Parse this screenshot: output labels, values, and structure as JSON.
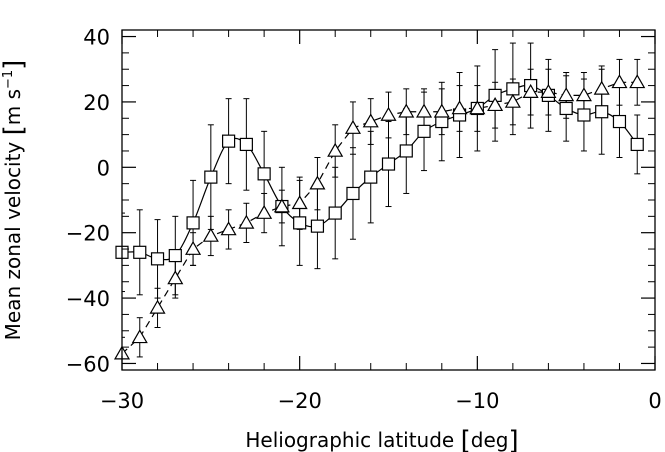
{
  "chart_data": {
    "type": "scatter",
    "title": "",
    "xlabel_parts": {
      "main": "Heliographic latitude",
      "unit": "deg"
    },
    "ylabel_parts": {
      "main": "Mean zonal velocity",
      "unit_base": "m s",
      "unit_exp": "−1"
    },
    "xlim": [
      -30,
      0
    ],
    "ylim": [
      -62,
      42
    ],
    "x_ticks": [
      -30,
      -20,
      -10,
      0
    ],
    "x_tick_labels": [
      "−30",
      "−20",
      "−10",
      "0"
    ],
    "y_ticks": [
      -60,
      -40,
      -20,
      0,
      20,
      40
    ],
    "y_tick_labels": [
      "−60",
      "−40",
      "−20",
      "0",
      "20",
      "40"
    ],
    "grid": false,
    "series": [
      {
        "marker": "square",
        "line": "solid",
        "color": "#000000",
        "x": [
          -30,
          -29,
          -28,
          -27,
          -26,
          -25,
          -24,
          -23,
          -22,
          -21,
          -20,
          -19,
          -18,
          -17,
          -16,
          -15,
          -14,
          -13,
          -12,
          -11,
          -10,
          -9,
          -8,
          -7,
          -6,
          -5,
          -4,
          -3,
          -2,
          -1
        ],
        "y": [
          -26,
          -26,
          -28,
          -27,
          -17,
          -3,
          8,
          7,
          -2,
          -12,
          -17,
          -18,
          -14,
          -8,
          -3,
          1,
          5,
          11,
          14,
          16,
          18,
          22,
          24,
          25,
          22,
          18,
          16,
          17,
          14,
          7
        ],
        "err": [
          12,
          13,
          12,
          12,
          13,
          16,
          13,
          14,
          13,
          12,
          13,
          13,
          14,
          14,
          14,
          13,
          13,
          12,
          12,
          13,
          13,
          14,
          14,
          13,
          11,
          10,
          11,
          13,
          11,
          9
        ]
      },
      {
        "marker": "triangle",
        "line": "dashed",
        "color": "#000000",
        "x": [
          -30,
          -29,
          -28,
          -27,
          -26,
          -25,
          -24,
          -23,
          -22,
          -21,
          -20,
          -19,
          -18,
          -17,
          -16,
          -15,
          -14,
          -13,
          -12,
          -11,
          -10,
          -9,
          -8,
          -7,
          -6,
          -5,
          -4,
          -3,
          -2,
          -1
        ],
        "y": [
          -57,
          -52,
          -43,
          -34,
          -25,
          -21,
          -19,
          -17,
          -14,
          -12,
          -11,
          -5,
          5,
          12,
          14,
          16,
          17,
          17,
          17,
          18,
          18,
          19,
          20,
          23,
          23,
          22,
          22,
          24,
          26,
          26
        ],
        "err": [
          5,
          6,
          6,
          6,
          5,
          6,
          6,
          6,
          6,
          5,
          8,
          8,
          8,
          8,
          7,
          7,
          7,
          7,
          7,
          7,
          7,
          7,
          7,
          7,
          7,
          7,
          7,
          7,
          7,
          7
        ]
      }
    ]
  }
}
